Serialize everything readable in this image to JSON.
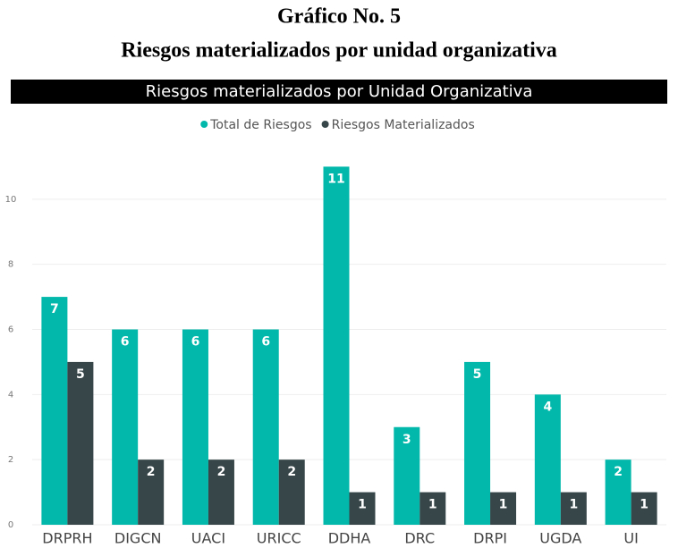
{
  "heading": {
    "line1": "Gráfico No. 5",
    "line2": "Riesgos materializados por unidad organizativa"
  },
  "chart_data": {
    "type": "bar",
    "title": "Riesgos materializados por Unidad Organizativa",
    "categories": [
      "DRPRH",
      "DIGCN",
      "UACI",
      "URICC",
      "DDHA",
      "DRC",
      "DRPI",
      "UGDA",
      "UI"
    ],
    "series": [
      {
        "name": "Total de Riesgos",
        "color": "#01B8AA",
        "values": [
          7,
          6,
          6,
          6,
          11,
          3,
          5,
          4,
          2
        ]
      },
      {
        "name": "Riesgos Materializados",
        "color": "#374649",
        "values": [
          5,
          2,
          2,
          2,
          1,
          1,
          1,
          1,
          1
        ]
      }
    ],
    "ylim": [
      0,
      12
    ],
    "yticks": [
      0,
      2,
      4,
      6,
      8,
      10
    ],
    "grid": true,
    "legend": "top"
  }
}
